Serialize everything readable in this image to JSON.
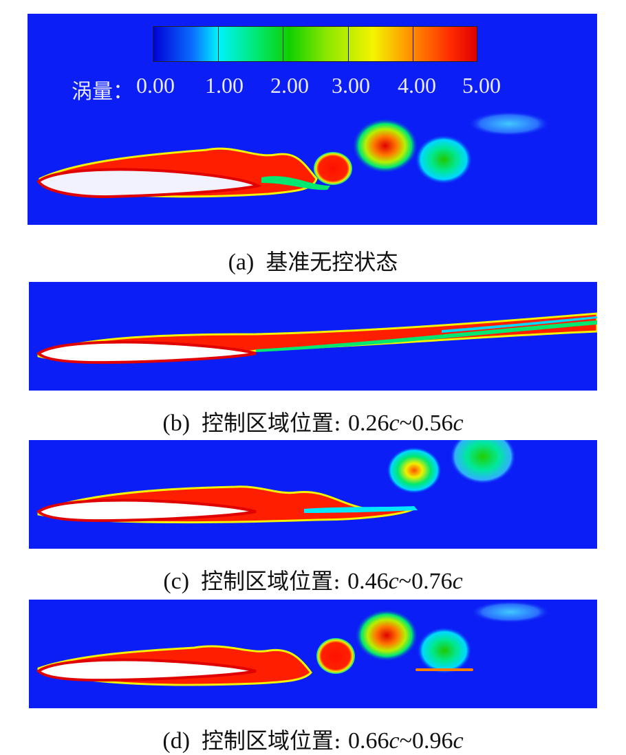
{
  "legend": {
    "title": "涡量：",
    "ticks": [
      "0.00",
      "1.00",
      "2.00",
      "3.00",
      "4.00",
      "5.00"
    ]
  },
  "panels": [
    {
      "letter": "(a)",
      "text": "基准无控状态",
      "pos_start": "",
      "pos_end": ""
    },
    {
      "letter": "(b)",
      "text": "控制区域位置: ",
      "pos_start": "0.26",
      "pos_end": "0.56"
    },
    {
      "letter": "(c)",
      "text": "控制区域位置: ",
      "pos_start": "0.46",
      "pos_end": "0.76"
    },
    {
      "letter": "(d)",
      "text": "控制区域位置: ",
      "pos_start": "0.66",
      "pos_end": "0.96"
    }
  ],
  "chord_symbol": "c",
  "range_sep": "~",
  "colors": {
    "background": "#0a1ef5",
    "low": "#0000d8",
    "mid": "#00e870",
    "high": "#e00000",
    "airfoil": "#ffffff"
  }
}
